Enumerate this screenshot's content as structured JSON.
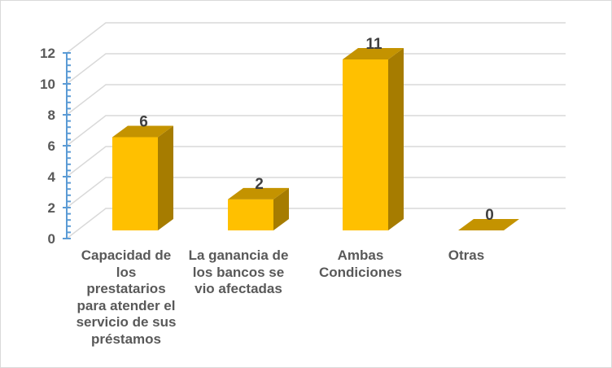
{
  "chart_data": {
    "type": "bar",
    "style": "3d-column",
    "title": "",
    "xlabel": "",
    "ylabel": "",
    "categories": [
      "Capacidad de los prestatarios para atender el servicio de sus préstamos",
      "La ganancia de los bancos se vio afectadas",
      "Ambas Condiciones",
      "Otras"
    ],
    "category_labels_wrapped": [
      "Capacidad de\nlos\nprestatarios\npara atender el\nservicio de sus\npréstamos",
      "La ganancia de\nlos bancos se\nvio afectadas",
      "Ambas\nCondiciones",
      "Otras"
    ],
    "values": [
      6,
      2,
      11,
      0
    ],
    "data_labels": [
      "6",
      "2",
      "11",
      "0"
    ],
    "ylim": [
      0,
      12
    ],
    "yticks": [
      0,
      2,
      4,
      6,
      8,
      10,
      12
    ],
    "ytick_labels": [
      "0",
      "2",
      "4",
      "6",
      "8",
      "10",
      "12"
    ],
    "grid": true,
    "legend": null,
    "colors": {
      "bar_front": "#FFC000",
      "bar_top": "#C49300",
      "bar_side": "#A67C00",
      "axis": "#5B9BD5",
      "grid": "#D9D9D9",
      "tick_text": "#595959",
      "label_text": "#404040"
    }
  }
}
